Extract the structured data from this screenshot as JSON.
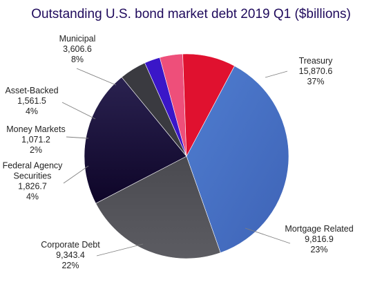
{
  "chart_data": {
    "type": "pie",
    "title": "Outstanding U.S. bond market debt 2019 Q1 ($billions)",
    "slices": [
      {
        "name": "Treasury",
        "value": 15870.6,
        "value_label": "15,870.6",
        "percent_label": "37%",
        "color": "#4472c4"
      },
      {
        "name": "Mortgage Related",
        "value": 9816.9,
        "value_label": "9,816.9",
        "percent_label": "23%",
        "color": "#505055"
      },
      {
        "name": "Corporate Debt",
        "value": 9343.4,
        "value_label": "9,343.4",
        "percent_label": "22%",
        "color": "#1a1040"
      },
      {
        "name": "Federal Agency Securities",
        "value": 1826.7,
        "value_label": "1,826.7",
        "percent_label": "4%",
        "color": "#3a3a40"
      },
      {
        "name": "Money Markets",
        "value": 1071.2,
        "value_label": "1,071.2",
        "percent_label": "2%",
        "color": "#3a16c8"
      },
      {
        "name": "Asset-Backed",
        "value": 1561.5,
        "value_label": "1,561.5",
        "percent_label": "4%",
        "color": "#ee4f7a"
      },
      {
        "name": "Municipal",
        "value": 3606.6,
        "value_label": "3,606.6",
        "percent_label": "8%",
        "color": "#e0112f"
      }
    ]
  }
}
